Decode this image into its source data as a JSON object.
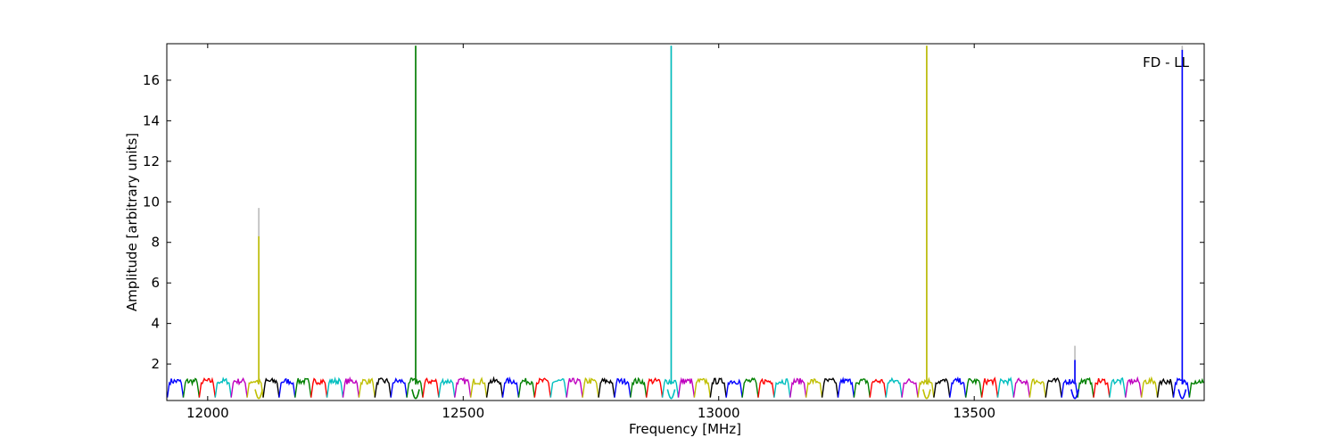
{
  "chart_data": {
    "type": "line",
    "title": "",
    "annotation": "FD - LL",
    "xlabel": "Frequency [MHz]",
    "ylabel": "Amplitude [arbitrary units]",
    "xlim": [
      11920,
      13950
    ],
    "ylim": [
      0.2,
      17.8
    ],
    "xticks": [
      12000,
      12500,
      13000,
      13500
    ],
    "yticks": [
      2,
      4,
      6,
      8,
      10,
      12,
      14,
      16
    ],
    "grid": false,
    "legend": "none",
    "channel_width_mhz": 31.25,
    "channel_pattern": {
      "band_start_mhz": 11921,
      "plateau_value": 1.15,
      "edge_value": 0.35,
      "ripple": 0.15
    },
    "colors": [
      "#0000ff",
      "#008000",
      "#ff0000",
      "#00bfbf",
      "#bf00bf",
      "#bfbf00",
      "#000000"
    ],
    "reference_color": "#bbbbbb",
    "spikes": [
      {
        "x": 12100,
        "value": 8.3,
        "reference_value": 9.7,
        "color": "#bfbf00"
      },
      {
        "x": 12407,
        "value": 17.7,
        "reference_value": 17.7,
        "color": "#008000"
      },
      {
        "x": 12907,
        "value": 17.7,
        "reference_value": 17.7,
        "color": "#00bfbf"
      },
      {
        "x": 13407,
        "value": 17.7,
        "reference_value": 17.7,
        "color": "#bfbf00"
      },
      {
        "x": 13697,
        "value": 2.2,
        "reference_value": 2.9,
        "color": "#0000ff"
      },
      {
        "x": 13907,
        "value": 17.5,
        "reference_value": 17.7,
        "color": "#0000ff"
      }
    ]
  }
}
